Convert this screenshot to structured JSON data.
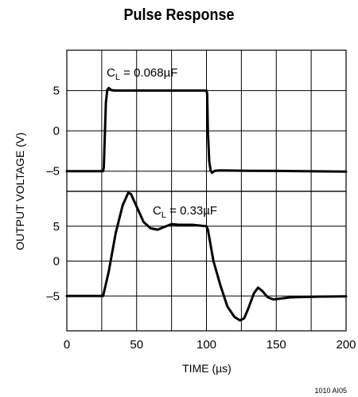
{
  "title": "Pulse Response",
  "footnote": "1010 AI05",
  "chart_data": {
    "type": "line",
    "title": "Pulse Response",
    "xlabel": "TIME (µs)",
    "ylabel": "OUTPUT VOLTAGE (V)",
    "xlim": [
      0,
      200
    ],
    "xticks": [
      "0",
      "50",
      "100",
      "150",
      "200"
    ],
    "grid": true,
    "panels": [
      {
        "annotation_base": "C",
        "annotation_sub": "L",
        "annotation_value": " = 0.068µF",
        "ylim": [
          -7.5,
          10
        ],
        "yticks": [
          5,
          0,
          -5
        ],
        "ytick_labels": [
          "5",
          "0",
          "–5"
        ],
        "series": [
          {
            "x": [
              0,
              26,
              26.5,
              28,
              29,
              30,
              32,
              35,
              40,
              60,
              80,
              100,
              100.5,
              101,
              102,
              103,
              104,
              106,
              110,
              130,
              150,
              170,
              200
            ],
            "y": [
              -5,
              -5,
              -4.5,
              3.5,
              5.1,
              5.3,
              5.05,
              5,
              5,
              5,
              5,
              5,
              4.6,
              0,
              -3.8,
              -4.9,
              -5.2,
              -4.95,
              -4.9,
              -4.95,
              -4.97,
              -5,
              -5.05
            ]
          }
        ]
      },
      {
        "annotation_base": "C",
        "annotation_sub": "L",
        "annotation_value": " = 0.33µF",
        "ylim": [
          -10,
          10
        ],
        "yticks": [
          5,
          0,
          -5
        ],
        "ytick_labels": [
          "5",
          "0",
          "–5"
        ],
        "series": [
          {
            "x": [
              0,
              26,
              30,
              35,
              40,
              44,
              46,
              50,
              55,
              60,
              65,
              70,
              75,
              80,
              90,
              100,
              101,
              105,
              110,
              115,
              120,
              124,
              127,
              130,
              134,
              137,
              140,
              144,
              148,
              152,
              160,
              180,
              200
            ],
            "y": [
              -5,
              -5,
              -1.5,
              4,
              8,
              9.8,
              9.6,
              7.8,
              5.6,
              4.7,
              4.5,
              4.9,
              5.3,
              5.2,
              5.2,
              5,
              4.5,
              0,
              -3.5,
              -6.5,
              -8,
              -8.5,
              -8.2,
              -6.8,
              -4.6,
              -3.8,
              -4.3,
              -5.2,
              -5.5,
              -5.4,
              -5.2,
              -5.1,
              -5.05
            ]
          }
        ]
      }
    ]
  }
}
